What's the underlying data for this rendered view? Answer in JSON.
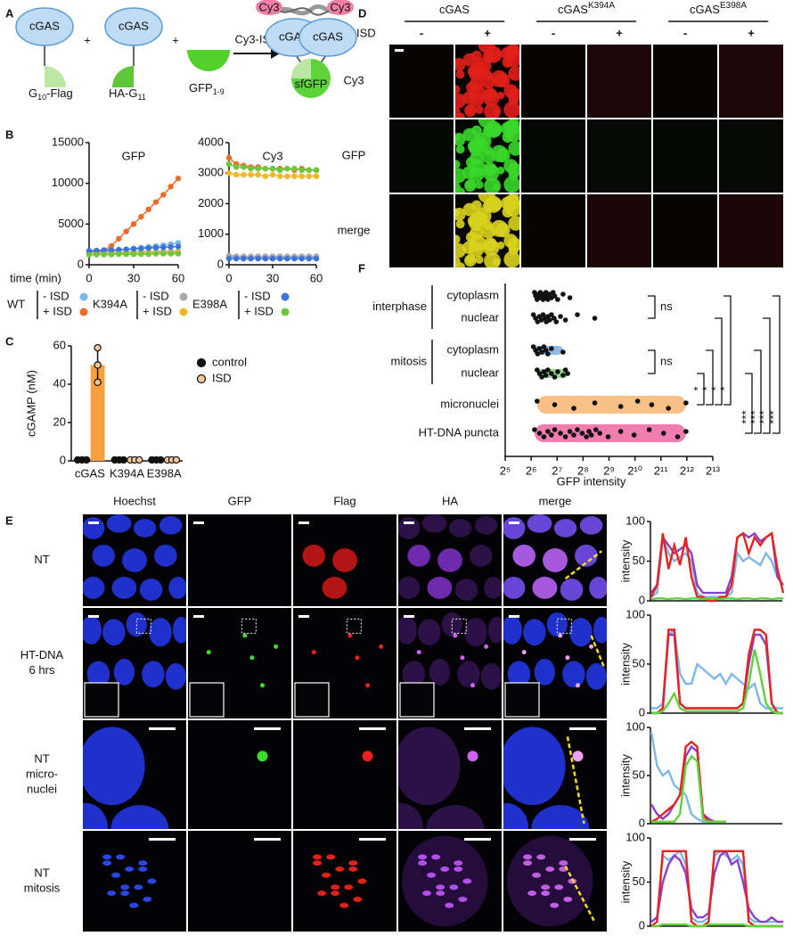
{
  "panel_letters": [
    "A",
    "B",
    "C",
    "D",
    "E",
    "F"
  ],
  "diagram": {
    "cgas": "cGAS",
    "plus": "+",
    "g10": "G",
    "g10_sub": "10",
    "g10_tail": "-Flag",
    "ha": "HA-G",
    "ha_sub": "11",
    "gfp": "GFP",
    "gfp_sub": "1-9",
    "arrow": "Cy3-ISD",
    "cy3": "Cy3",
    "sfgfp": "sfGFP"
  },
  "legend_b": {
    "groups": [
      {
        "name": "WT",
        "entries": [
          {
            "name": "- ISD",
            "color": "#74b9e7"
          },
          {
            "name": "+ ISD",
            "color": "#ee6b2d"
          }
        ]
      },
      {
        "name": "K394A",
        "entries": [
          {
            "name": "- ISD",
            "color": "#a9a9a9"
          },
          {
            "name": "+ ISD",
            "color": "#f4b626"
          }
        ]
      },
      {
        "name": "E398A",
        "entries": [
          {
            "name": "- ISD",
            "color": "#3f72d9"
          },
          {
            "name": "+ ISD",
            "color": "#6cc83a"
          }
        ]
      }
    ]
  },
  "chart_data": [
    {
      "type": "line",
      "title": "GFP",
      "xlabel": "time (min)",
      "x": [
        0,
        5,
        10,
        15,
        20,
        25,
        30,
        35,
        40,
        45,
        50,
        55,
        60
      ],
      "xlim": [
        0,
        60
      ],
      "xticks": [
        0,
        30,
        60
      ],
      "ylim": [
        0,
        15000
      ],
      "yticks": [
        0,
        5000,
        10000,
        15000
      ],
      "series": [
        {
          "values": [
            1600,
            1650,
            1700,
            1750,
            1800,
            1900,
            2000,
            2100,
            2200,
            2300,
            2400,
            2550,
            2700
          ]
        },
        {
          "values": [
            1500,
            1600,
            1800,
            2300,
            3200,
            4100,
            5000,
            5900,
            6800,
            7700,
            8600,
            9600,
            10600
          ]
        },
        {
          "values": [
            1500,
            1500,
            1500,
            1550,
            1550,
            1550,
            1600,
            1600,
            1600,
            1600,
            1650,
            1650,
            1650
          ]
        },
        {
          "values": [
            1300,
            1300,
            1350,
            1350,
            1400,
            1400,
            1400,
            1400,
            1450,
            1450,
            1450,
            1450,
            1500
          ]
        },
        {
          "values": [
            1700,
            1750,
            1800,
            1800,
            1850,
            1900,
            1950,
            2000,
            2050,
            2100,
            2150,
            2200,
            2250
          ]
        },
        {
          "values": [
            1200,
            1250,
            1250,
            1250,
            1300,
            1300,
            1300,
            1300,
            1300,
            1350,
            1350,
            1350,
            1350
          ]
        }
      ]
    },
    {
      "type": "line",
      "title": "Cy3",
      "x": [
        0,
        5,
        10,
        15,
        20,
        25,
        30,
        35,
        40,
        45,
        50,
        55,
        60
      ],
      "xlim": [
        0,
        60
      ],
      "xticks": [
        0,
        30,
        60
      ],
      "ylim": [
        0,
        4000
      ],
      "yticks": [
        0,
        1000,
        2000,
        3000,
        4000
      ],
      "series": [
        {
          "values": [
            260,
            250,
            250,
            250,
            250,
            250,
            250,
            250,
            250,
            250,
            250,
            250,
            250
          ]
        },
        {
          "values": [
            3500,
            3300,
            3250,
            3200,
            3200,
            3150,
            3150,
            3150,
            3150,
            3100,
            3150,
            3100,
            3100
          ]
        },
        {
          "values": [
            300,
            280,
            280,
            280,
            280,
            280,
            280,
            280,
            280,
            280,
            280,
            280,
            280
          ]
        },
        {
          "values": [
            3000,
            2950,
            2950,
            2950,
            2950,
            2900,
            2950,
            2900,
            2900,
            2900,
            2900,
            2900,
            2900
          ]
        },
        {
          "values": [
            200,
            200,
            200,
            200,
            200,
            200,
            200,
            200,
            200,
            200,
            200,
            200,
            200
          ]
        },
        {
          "values": [
            3300,
            3200,
            3200,
            3150,
            3150,
            3150,
            3150,
            3100,
            3150,
            3150,
            3100,
            3100,
            3100
          ]
        }
      ]
    },
    {
      "type": "bar",
      "ylabel": "cGAMP (nM)",
      "categories": [
        "cGAS",
        "K394A",
        "E398A"
      ],
      "ylim": [
        0,
        60
      ],
      "yticks": [
        0,
        20,
        40,
        60
      ],
      "series": [
        {
          "name": "control",
          "color": "#111111",
          "values": [
            0.5,
            0.5,
            0.5
          ],
          "points": [
            [
              0.5,
              0.5,
              0.5
            ],
            [
              0.5,
              0.5,
              0.5
            ],
            [
              0.5,
              0.5,
              0.5
            ]
          ]
        },
        {
          "name": "ISD",
          "color": "#f7a040",
          "point_color": "#f4c79a",
          "values": [
            50,
            0.5,
            0.5
          ],
          "points": [
            [
              59,
              50,
              41
            ],
            [
              0.5,
              0.5,
              0.5
            ],
            [
              0.5,
              0.5,
              0.5
            ]
          ]
        }
      ]
    },
    {
      "type": "dot",
      "xlabel": "GFP intensity",
      "xscale": "log2",
      "xlim": [
        32,
        8192
      ],
      "xticks": [
        {
          "value": 32,
          "label": "2⁵"
        },
        {
          "value": 64,
          "label": "2⁶"
        },
        {
          "value": 128,
          "label": "2⁷"
        },
        {
          "value": 256,
          "label": "2⁸"
        },
        {
          "value": 512,
          "label": "2⁹"
        },
        {
          "value": 1024,
          "label": "2¹⁰"
        },
        {
          "value": 2048,
          "label": "2¹¹"
        },
        {
          "value": 4096,
          "label": "2¹²"
        },
        {
          "value": 8192,
          "label": "2¹³"
        }
      ],
      "rows": [
        {
          "group": "interphase",
          "items": [
            {
              "label": "cytoplasm",
              "values": [
                70,
                72,
                75,
                78,
                80,
                82,
                85,
                88,
                90,
                92,
                95,
                98,
                100,
                105,
                110,
                115,
                120,
                130,
                150,
                180
              ]
            },
            {
              "label": "nuclear",
              "values": [
                68,
                72,
                76,
                80,
                84,
                88,
                92,
                96,
                100,
                105,
                110,
                118,
                125,
                140,
                160,
                220,
                350
              ]
            }
          ]
        },
        {
          "group": "mitosis",
          "items": [
            {
              "label": "cytoplasm",
              "color": "#7db3e6",
              "values": [
                68,
                72,
                76,
                80,
                85,
                90,
                95,
                100,
                110,
                150
              ]
            },
            {
              "label": "nuclear",
              "color": "#8fd48a",
              "values": [
                75,
                80,
                85,
                90,
                95,
                100,
                110,
                120,
                130,
                150,
                160,
                170
              ]
            }
          ]
        },
        {
          "items": [
            {
              "label": "micronuclei",
              "color": "#f7b87a",
              "values": [
                75,
                120,
                200,
                350,
                700,
                1100,
                1600,
                2500,
                4000
              ]
            }
          ]
        },
        {
          "items": [
            {
              "label": "HT-DNA puncta",
              "color": "#ee6fa6",
              "values": [
                70,
                80,
                90,
                100,
                110,
                120,
                140,
                160,
                180,
                200,
                220,
                250,
                280,
                300,
                320,
                360,
                400,
                500,
                700,
                1000,
                1500,
                2200,
                3200,
                4000
              ]
            }
          ]
        }
      ],
      "significance": [
        "ns",
        "ns",
        "*",
        "*",
        "*",
        "*",
        "***",
        "***",
        "***",
        "***"
      ]
    },
    {
      "type": "profile",
      "ylabel": "intensity",
      "ylim": [
        0,
        100
      ],
      "yticks": [
        0,
        50,
        100
      ],
      "series": [
        {
          "color": "#7fb8e8",
          "values": [
            5,
            10,
            80,
            60,
            50,
            55,
            60,
            50,
            10,
            5,
            5,
            5,
            5,
            5,
            10,
            60,
            50,
            55,
            50,
            45,
            60,
            50,
            30,
            20
          ]
        },
        {
          "color": "#8a3fd1",
          "values": [
            10,
            20,
            80,
            70,
            60,
            65,
            70,
            60,
            20,
            10,
            10,
            10,
            10,
            10,
            30,
            80,
            85,
            80,
            85,
            75,
            80,
            85,
            30,
            20
          ]
        },
        {
          "color": "#e8231e",
          "values": [
            5,
            20,
            85,
            40,
            70,
            45,
            80,
            30,
            5,
            5,
            0,
            0,
            5,
            5,
            20,
            80,
            85,
            60,
            80,
            70,
            80,
            85,
            40,
            10
          ]
        },
        {
          "color": "#5fd33a",
          "values": [
            2,
            3,
            3,
            2,
            3,
            3,
            2,
            3,
            3,
            2,
            3,
            3,
            2,
            3,
            3,
            2,
            3,
            3,
            2,
            3,
            3,
            2,
            3,
            3
          ]
        }
      ]
    },
    {
      "type": "profile",
      "ylabel": "intensity",
      "ylim": [
        0,
        100
      ],
      "yticks": [
        0,
        50,
        100
      ],
      "series": [
        {
          "color": "#7fb8e8",
          "values": [
            5,
            5,
            10,
            80,
            85,
            40,
            30,
            30,
            50,
            45,
            40,
            35,
            40,
            30,
            40,
            35,
            30,
            25,
            30,
            10,
            5,
            5,
            5,
            5
          ]
        },
        {
          "color": "#8a3fd1",
          "values": [
            0,
            0,
            5,
            80,
            80,
            10,
            5,
            5,
            5,
            5,
            5,
            5,
            5,
            5,
            5,
            5,
            10,
            50,
            80,
            80,
            70,
            10,
            0,
            0
          ]
        },
        {
          "color": "#e8231e",
          "values": [
            0,
            0,
            5,
            85,
            85,
            10,
            5,
            5,
            5,
            5,
            5,
            5,
            5,
            5,
            5,
            5,
            10,
            60,
            85,
            85,
            80,
            10,
            0,
            0
          ]
        },
        {
          "color": "#5fd33a",
          "values": [
            0,
            0,
            2,
            10,
            20,
            5,
            2,
            2,
            2,
            2,
            2,
            2,
            2,
            2,
            2,
            2,
            5,
            30,
            65,
            40,
            10,
            2,
            0,
            0
          ]
        }
      ]
    },
    {
      "type": "profile",
      "ylabel": "intensity",
      "ylim": [
        0,
        100
      ],
      "yticks": [
        0,
        50,
        100
      ],
      "series": [
        {
          "color": "#7fb8e8",
          "values": [
            95,
            60,
            50,
            55,
            40,
            35,
            30,
            10,
            5,
            2,
            2,
            2,
            2,
            2
          ]
        },
        {
          "color": "#8a3fd1",
          "values": [
            20,
            10,
            5,
            10,
            20,
            30,
            70,
            80,
            75,
            10,
            5,
            2,
            2,
            2
          ]
        },
        {
          "color": "#e8231e",
          "values": [
            2,
            5,
            10,
            15,
            20,
            30,
            80,
            85,
            80,
            10,
            2,
            2,
            2,
            2
          ]
        },
        {
          "color": "#5fd33a",
          "values": [
            2,
            2,
            2,
            2,
            2,
            10,
            60,
            70,
            65,
            5,
            2,
            2,
            2,
            2
          ]
        }
      ]
    },
    {
      "type": "profile",
      "ylabel": "intensity",
      "ylim": [
        0,
        100
      ],
      "yticks": [
        0,
        50,
        100
      ],
      "series": [
        {
          "color": "#7fb8e8",
          "values": [
            5,
            10,
            80,
            75,
            80,
            85,
            70,
            10,
            5,
            5,
            10,
            80,
            85,
            80,
            75,
            80,
            70,
            10,
            5,
            5,
            5,
            5,
            5,
            5
          ]
        },
        {
          "color": "#8a3fd1",
          "values": [
            5,
            10,
            50,
            70,
            80,
            75,
            60,
            20,
            10,
            10,
            15,
            60,
            80,
            85,
            70,
            75,
            50,
            20,
            10,
            5,
            5,
            10,
            5,
            5
          ]
        },
        {
          "color": "#e8231e",
          "values": [
            0,
            5,
            85,
            85,
            85,
            85,
            85,
            5,
            0,
            0,
            5,
            85,
            85,
            85,
            85,
            85,
            85,
            5,
            0,
            0,
            0,
            0,
            0,
            0
          ]
        },
        {
          "color": "#5fd33a",
          "values": [
            0,
            0,
            2,
            2,
            2,
            2,
            2,
            0,
            0,
            0,
            2,
            2,
            2,
            2,
            2,
            2,
            2,
            0,
            0,
            0,
            0,
            0,
            0,
            0
          ]
        }
      ]
    }
  ],
  "microscopy_d": {
    "headers": [
      {
        "name": "cGAS"
      },
      {
        "name": "cGAS",
        "mutation": "K394A"
      },
      {
        "name": "cGAS",
        "mutation": "E398A"
      }
    ],
    "condition": "ISD",
    "signs": [
      "-",
      "+",
      "-",
      "+",
      "-",
      "+"
    ],
    "rows": [
      "Cy3",
      "GFP",
      "merge"
    ]
  },
  "microscopy_e": {
    "columns": [
      "Hoechst",
      "GFP",
      "Flag",
      "HA",
      "merge"
    ],
    "rows": [
      [
        "NT"
      ],
      [
        "HT-DNA",
        "6 hrs"
      ],
      [
        "NT",
        "micro-",
        "nuclei"
      ],
      [
        "NT",
        "mitosis"
      ]
    ]
  }
}
